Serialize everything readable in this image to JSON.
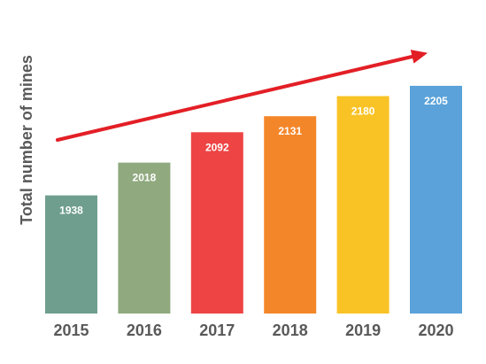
{
  "chart_data": {
    "type": "bar",
    "ylabel": "Total number of mines",
    "xlabel": "",
    "title": "",
    "categories": [
      "2015",
      "2016",
      "2017",
      "2018",
      "2019",
      "2020"
    ],
    "values": [
      1938,
      2018,
      2092,
      2131,
      2180,
      2205
    ],
    "data_labels": [
      "1938",
      "2018",
      "2092",
      "2131",
      "2180",
      "2205"
    ],
    "bar_colors": [
      "#6f9e8f",
      "#90a97f",
      "#ee4444",
      "#f4862a",
      "#f9c326",
      "#5aa2d9"
    ],
    "trend_arrow_color": "#e31f26",
    "ylim": [
      1650,
      2220
    ],
    "grid": false,
    "legend": "none"
  }
}
